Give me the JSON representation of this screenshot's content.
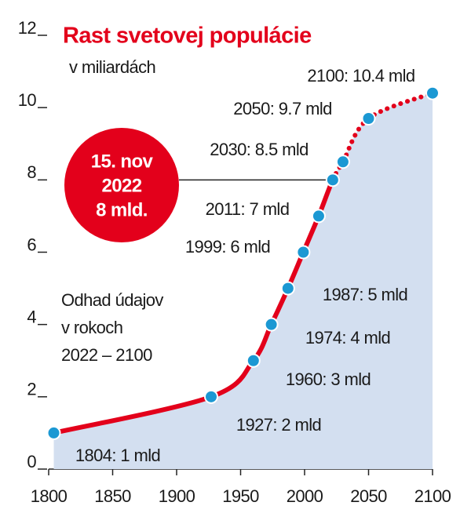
{
  "chart_data": {
    "type": "area-line",
    "title": "Rast svetovej populácie",
    "subtitle": "v miliardách",
    "x": [
      1804,
      1927,
      1960,
      1974,
      1987,
      1999,
      2011,
      2022,
      2030,
      2050,
      2100
    ],
    "values": [
      1,
      2,
      3,
      4,
      5,
      6,
      7,
      8,
      8.5,
      9.7,
      10.4
    ],
    "value_labels": [
      "1804:  1 mld",
      "1927:  2 mld",
      "1960:  3 mld",
      "1974:  4 mld",
      "1987:  5 mld",
      "1999:  6 mld",
      "2011:  7 mld",
      null,
      "2030: 8.5 mld",
      "2050: 9.7 mld",
      "2100:  10.4 mld"
    ],
    "projection_from": 2022,
    "annotation": [
      "15. nov",
      "2022",
      "8 mld."
    ],
    "note": [
      "Odhad údajov",
      "v rokoch",
      "2022 – 2100"
    ],
    "line_color": "#e3001b",
    "marker_color": "#1b98d3",
    "area_color": "#d3dff0",
    "xlim": [
      1800,
      2100
    ],
    "xticks": [
      1800,
      1850,
      1900,
      1950,
      2000,
      2050,
      2100
    ],
    "ylim": [
      0,
      12
    ],
    "yticks": [
      0,
      2,
      4,
      6,
      8,
      10,
      12
    ]
  }
}
